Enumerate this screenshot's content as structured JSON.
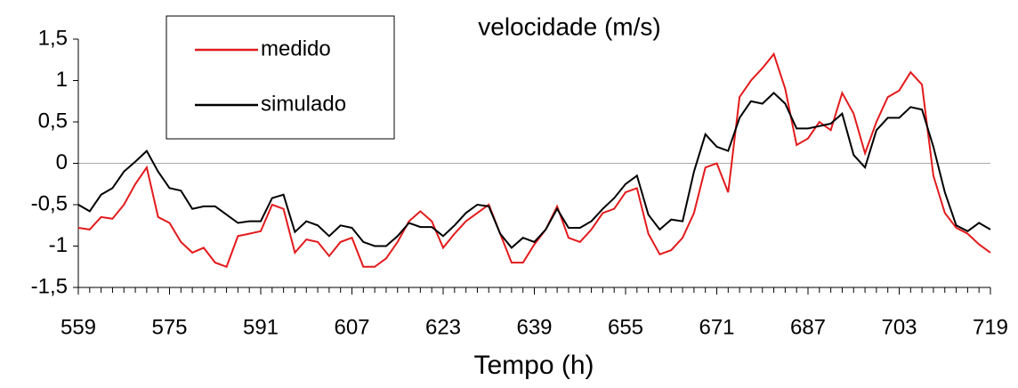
{
  "chart_data": {
    "type": "line",
    "title": "velocidade (m/s)",
    "x_label": "Tempo (h)",
    "x": [
      559,
      561,
      563,
      565,
      567,
      569,
      571,
      573,
      575,
      577,
      579,
      581,
      583,
      585,
      587,
      589,
      591,
      593,
      595,
      597,
      599,
      601,
      603,
      605,
      607,
      609,
      611,
      613,
      615,
      617,
      619,
      621,
      623,
      625,
      627,
      629,
      631,
      633,
      635,
      637,
      639,
      641,
      643,
      645,
      647,
      649,
      651,
      653,
      655,
      657,
      659,
      661,
      663,
      665,
      667,
      669,
      671,
      673,
      675,
      677,
      679,
      681,
      683,
      685,
      687,
      689,
      691,
      693,
      695,
      697,
      699,
      701,
      703,
      705,
      707,
      709,
      711,
      713,
      715,
      717,
      719
    ],
    "series": [
      {
        "name": "medido",
        "color": "#e31a1c",
        "values": [
          -0.78,
          -0.8,
          -0.65,
          -0.67,
          -0.5,
          -0.25,
          -0.05,
          -0.65,
          -0.72,
          -0.95,
          -1.08,
          -1.02,
          -1.2,
          -1.25,
          -0.88,
          -0.85,
          -0.82,
          -0.5,
          -0.55,
          -1.08,
          -0.92,
          -0.95,
          -1.12,
          -0.95,
          -0.9,
          -1.25,
          -1.25,
          -1.15,
          -0.95,
          -0.7,
          -0.58,
          -0.7,
          -1.02,
          -0.85,
          -0.7,
          -0.6,
          -0.5,
          -0.85,
          -1.2,
          -1.2,
          -0.98,
          -0.8,
          -0.52,
          -0.9,
          -0.95,
          -0.8,
          -0.6,
          -0.55,
          -0.35,
          -0.3,
          -0.85,
          -1.1,
          -1.05,
          -0.9,
          -0.6,
          -0.05,
          0.0,
          -0.35,
          0.8,
          1.0,
          1.15,
          1.32,
          0.9,
          0.22,
          0.3,
          0.5,
          0.4,
          0.85,
          0.6,
          0.12,
          0.5,
          0.8,
          0.88,
          1.1,
          0.95,
          -0.15,
          -0.6,
          -0.78,
          -0.85,
          -0.98,
          -1.08
        ]
      },
      {
        "name": "simulado",
        "color": "#000000",
        "values": [
          -0.5,
          -0.58,
          -0.38,
          -0.3,
          -0.1,
          0.02,
          0.15,
          -0.1,
          -0.3,
          -0.33,
          -0.55,
          -0.52,
          -0.52,
          -0.62,
          -0.72,
          -0.7,
          -0.7,
          -0.42,
          -0.38,
          -0.83,
          -0.7,
          -0.75,
          -0.88,
          -0.75,
          -0.78,
          -0.95,
          -1.0,
          -1.0,
          -0.88,
          -0.72,
          -0.77,
          -0.77,
          -0.88,
          -0.75,
          -0.6,
          -0.5,
          -0.52,
          -0.85,
          -1.02,
          -0.9,
          -0.95,
          -0.8,
          -0.55,
          -0.78,
          -0.78,
          -0.7,
          -0.55,
          -0.42,
          -0.25,
          -0.15,
          -0.62,
          -0.8,
          -0.68,
          -0.7,
          -0.1,
          0.35,
          0.2,
          0.15,
          0.55,
          0.75,
          0.72,
          0.85,
          0.72,
          0.42,
          0.42,
          0.45,
          0.48,
          0.6,
          0.1,
          -0.05,
          0.4,
          0.55,
          0.55,
          0.68,
          0.65,
          0.2,
          -0.35,
          -0.75,
          -0.82,
          -0.72,
          -0.8
        ]
      }
    ],
    "xlim": [
      559,
      719
    ],
    "xticks": [
      559,
      575,
      591,
      607,
      623,
      639,
      655,
      671,
      687,
      703,
      719
    ],
    "xminorticks": [
      559,
      561,
      563,
      565,
      567,
      569,
      571,
      573,
      575,
      577,
      579,
      581,
      583,
      585,
      587,
      589,
      591,
      593,
      595,
      597,
      599,
      601,
      603,
      605,
      607,
      609,
      611,
      613,
      615,
      617,
      619,
      621,
      623,
      625,
      627,
      629,
      631,
      633,
      635,
      637,
      639,
      641,
      643,
      645,
      647,
      649,
      651,
      653,
      655,
      657,
      659,
      661,
      663,
      665,
      667,
      669,
      671,
      673,
      675,
      677,
      679,
      681,
      683,
      685,
      687,
      689,
      691,
      693,
      695,
      697,
      699,
      701,
      703,
      705,
      707,
      709,
      711,
      713,
      715,
      717,
      719
    ],
    "ylim": [
      -1.5,
      1.5
    ],
    "yticks": [
      {
        "value": -1.5,
        "label": "-1,5"
      },
      -1,
      {
        "value": -0.5,
        "label": "-0,5"
      },
      0,
      {
        "value": 0.5,
        "label": "0,5"
      },
      1,
      {
        "value": 1.5,
        "label": "1,5"
      }
    ],
    "zero_line": true,
    "legend": "upper left"
  }
}
